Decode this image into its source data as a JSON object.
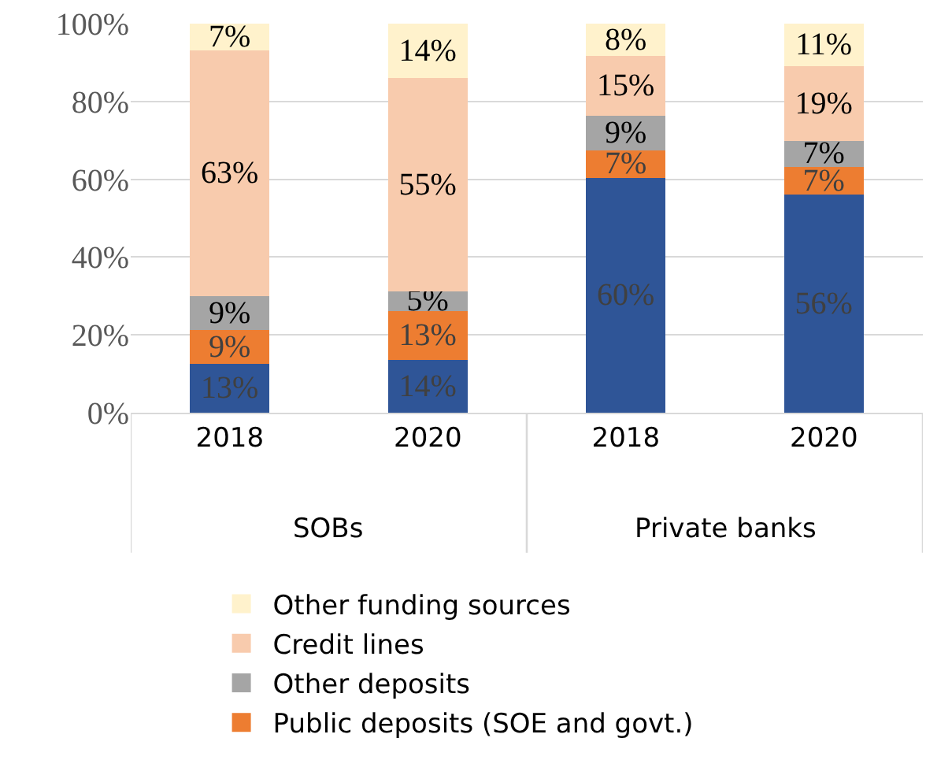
{
  "chart_data": {
    "type": "bar",
    "stacked": true,
    "categories": [
      "2018",
      "2020",
      "2018",
      "2020"
    ],
    "series": [
      {
        "color": "#2f5597",
        "values": [
          12.6,
          13.5,
          60.3,
          56.0
        ],
        "value_labels": [
          "13%",
          "14%",
          "60%",
          "56%"
        ]
      },
      {
        "name": "Public deposits (SOE and govt.)",
        "color": "#ed7d31",
        "values": [
          8.6,
          12.7,
          7.2,
          7.2
        ],
        "value_labels": [
          "9%",
          "13%",
          "7%",
          "7%"
        ]
      },
      {
        "name": "Other deposits",
        "color": "#a5a5a5",
        "values": [
          8.7,
          4.9,
          8.8,
          6.6
        ],
        "value_labels": [
          "9%",
          "5%",
          "9%",
          "7%"
        ]
      },
      {
        "name": "Credit lines",
        "color": "#f8cbad",
        "values": [
          63.2,
          54.9,
          15.4,
          19.2
        ],
        "value_labels": [
          "63%",
          "55%",
          "15%",
          "19%"
        ]
      },
      {
        "name": "Other funding sources",
        "color": "#fff2cc",
        "values": [
          6.9,
          14.0,
          8.3,
          11.0
        ],
        "value_labels": [
          "7%",
          "14%",
          "8%",
          "11%"
        ]
      }
    ],
    "annotations": [
      "SOBs",
      "Private banks"
    ],
    "ylim": [
      0,
      100
    ],
    "yticks": [
      {
        "value": 0,
        "label": "0%"
      },
      {
        "value": 20,
        "label": "20%"
      },
      {
        "value": 40,
        "label": "40%"
      },
      {
        "value": 60,
        "label": "60%"
      },
      {
        "value": 80,
        "label": "80%"
      },
      {
        "value": 100,
        "label": "100%"
      }
    ],
    "grid": "y",
    "legend": "bottom"
  }
}
